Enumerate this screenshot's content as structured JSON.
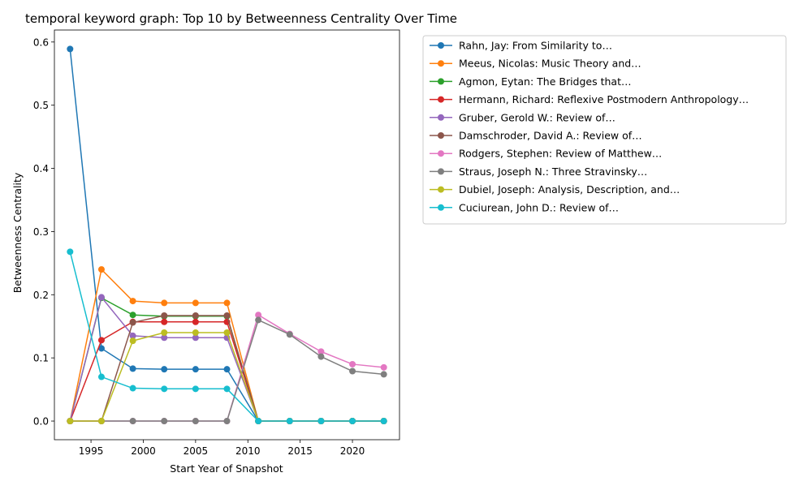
{
  "chart_data": {
    "type": "line",
    "title": "temporal keyword graph: Top 10 by Betweenness Centrality Over Time",
    "xlabel": "Start Year of Snapshot",
    "ylabel": "Betweenness Centrality",
    "xlim": [
      1991.5,
      2024.5
    ],
    "ylim": [
      -0.0295,
      0.619
    ],
    "xticks": [
      1995,
      2000,
      2005,
      2010,
      2015,
      2020
    ],
    "yticks": [
      0.0,
      0.1,
      0.2,
      0.3,
      0.4,
      0.5,
      0.6
    ],
    "xtick_labels": [
      "1995",
      "2000",
      "2005",
      "2010",
      "2015",
      "2020"
    ],
    "ytick_labels": [
      "0.0",
      "0.1",
      "0.2",
      "0.3",
      "0.4",
      "0.5",
      "0.6"
    ],
    "grid": false,
    "legend_position": "outside-top-right",
    "x": [
      1993,
      1996,
      1999,
      2002,
      2005,
      2008,
      2011,
      2014,
      2017,
      2020,
      2023
    ],
    "series": [
      {
        "name": "Rahn, Jay: From Similarity to…",
        "color": "#1f77b4",
        "values": [
          0.589,
          0.115,
          0.083,
          0.082,
          0.082,
          0.082,
          0.0,
          0.0,
          0.0,
          0.0,
          0.0
        ]
      },
      {
        "name": "Meeus, Nicolas: Music Theory and…",
        "color": "#ff7f0e",
        "values": [
          0.0,
          0.24,
          0.19,
          0.187,
          0.187,
          0.187,
          0.0,
          0.0,
          0.0,
          0.0,
          0.0
        ]
      },
      {
        "name": "Agmon, Eytan: The Bridges that…",
        "color": "#2ca02c",
        "values": [
          0.0,
          0.195,
          0.168,
          0.166,
          0.166,
          0.166,
          0.0,
          0.0,
          0.0,
          0.0,
          0.0
        ]
      },
      {
        "name": "Hermann, Richard: Reflexive Postmodern Anthropology…",
        "color": "#d62728",
        "values": [
          0.0,
          0.128,
          0.157,
          0.157,
          0.157,
          0.157,
          0.0,
          0.0,
          0.0,
          0.0,
          0.0
        ]
      },
      {
        "name": "Gruber, Gerold W.: Review of…",
        "color": "#9467bd",
        "values": [
          0.0,
          0.196,
          0.135,
          0.132,
          0.132,
          0.132,
          0.0,
          0.0,
          0.0,
          0.0,
          0.0
        ]
      },
      {
        "name": "Damschroder, David A.: Review of…",
        "color": "#8c564b",
        "values": [
          0.0,
          0.0,
          0.156,
          0.167,
          0.167,
          0.167,
          0.0,
          0.0,
          0.0,
          0.0,
          0.0
        ]
      },
      {
        "name": "Rodgers, Stephen: Review of Matthew…",
        "color": "#e377c2",
        "values": [
          0.0,
          0.0,
          0.0,
          0.0,
          0.0,
          0.0,
          0.168,
          0.138,
          0.11,
          0.09,
          0.085
        ]
      },
      {
        "name": "Straus, Joseph N.: Three Stravinsky…",
        "color": "#7f7f7f",
        "values": [
          0.0,
          0.0,
          0.0,
          0.0,
          0.0,
          0.0,
          0.16,
          0.137,
          0.102,
          0.079,
          0.074
        ]
      },
      {
        "name": "Dubiel, Joseph: Analysis, Description, and…",
        "color": "#bcbd22",
        "values": [
          0.0,
          0.0,
          0.127,
          0.14,
          0.14,
          0.14,
          0.0,
          0.0,
          0.0,
          0.0,
          0.0
        ]
      },
      {
        "name": "Cuciurean, John D.: Review of…",
        "color": "#17becf",
        "values": [
          0.268,
          0.07,
          0.052,
          0.051,
          0.051,
          0.051,
          0.0,
          0.0,
          0.0,
          0.0,
          0.0
        ]
      }
    ]
  }
}
